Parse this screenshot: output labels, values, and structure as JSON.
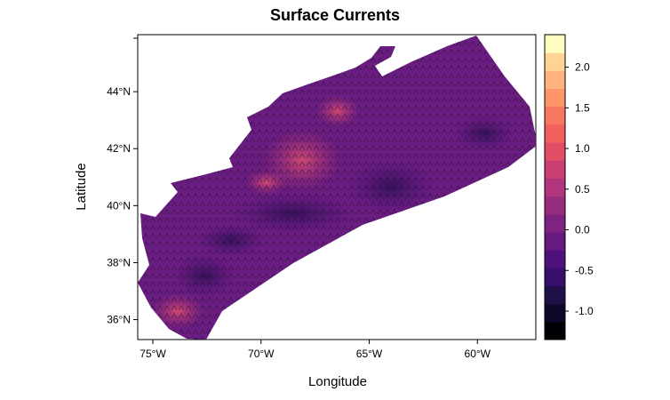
{
  "chart_data": {
    "type": "heatmap",
    "title": "Surface Currents",
    "xlabel": "Longitude",
    "ylabel": "Latitude",
    "x_ticks": [
      {
        "value": -75,
        "label": "75°W"
      },
      {
        "value": -70,
        "label": "70°W"
      },
      {
        "value": -65,
        "label": "65°W"
      },
      {
        "value": -60,
        "label": "60°W"
      }
    ],
    "y_ticks": [
      {
        "value": 36,
        "label": "36°N"
      },
      {
        "value": 38,
        "label": "38°N"
      },
      {
        "value": 40,
        "label": "40°N"
      },
      {
        "value": 42,
        "label": "42°N"
      },
      {
        "value": 44,
        "label": "44°N"
      }
    ],
    "xlim": [
      -75.7,
      -57.3
    ],
    "ylim": [
      35.3,
      46.0
    ],
    "colorbar": {
      "ticks": [
        -1.0,
        -0.5,
        0.0,
        0.5,
        1.0,
        1.5,
        2.0
      ],
      "tick_labels": [
        "-1.0",
        "-0.5",
        "0.0",
        "0.5",
        "1.0",
        "1.5",
        "2.0"
      ],
      "range": [
        -1.35,
        2.4
      ],
      "colors": [
        "#000004",
        "#0d0a29",
        "#1f1147",
        "#37106b",
        "#4f127b",
        "#661a80",
        "#7f2382",
        "#982d80",
        "#b1357c",
        "#cb3e72",
        "#e14d66",
        "#f1605d",
        "#f8785f",
        "#fd9668",
        "#feb37e",
        "#fed395",
        "#fcfdbf"
      ]
    },
    "grid": false,
    "legend": "right",
    "series": [
      {
        "values_sample": [
          {
            "lon": -73.5,
            "lat": 37.0,
            "value": 0.3
          },
          {
            "lon": -72.0,
            "lat": 38.5,
            "value": -0.4
          },
          {
            "lon": -70.0,
            "lat": 39.5,
            "value": -0.6
          },
          {
            "lon": -68.0,
            "lat": 41.5,
            "value": 0.6
          },
          {
            "lon": -67.0,
            "lat": 42.0,
            "value": 0.9
          },
          {
            "lon": -66.5,
            "lat": 43.5,
            "value": 0.5
          },
          {
            "lon": -65.5,
            "lat": 40.5,
            "value": -0.5
          },
          {
            "lon": -63.0,
            "lat": 41.5,
            "value": -0.3
          },
          {
            "lon": -61.0,
            "lat": 42.5,
            "value": -0.2
          },
          {
            "lon": -60.0,
            "lat": 43.0,
            "value": -0.5
          },
          {
            "lon": -59.0,
            "lat": 44.5,
            "value": 0.0
          },
          {
            "lon": -58.0,
            "lat": 43.0,
            "value": 0.1
          }
        ]
      }
    ]
  }
}
